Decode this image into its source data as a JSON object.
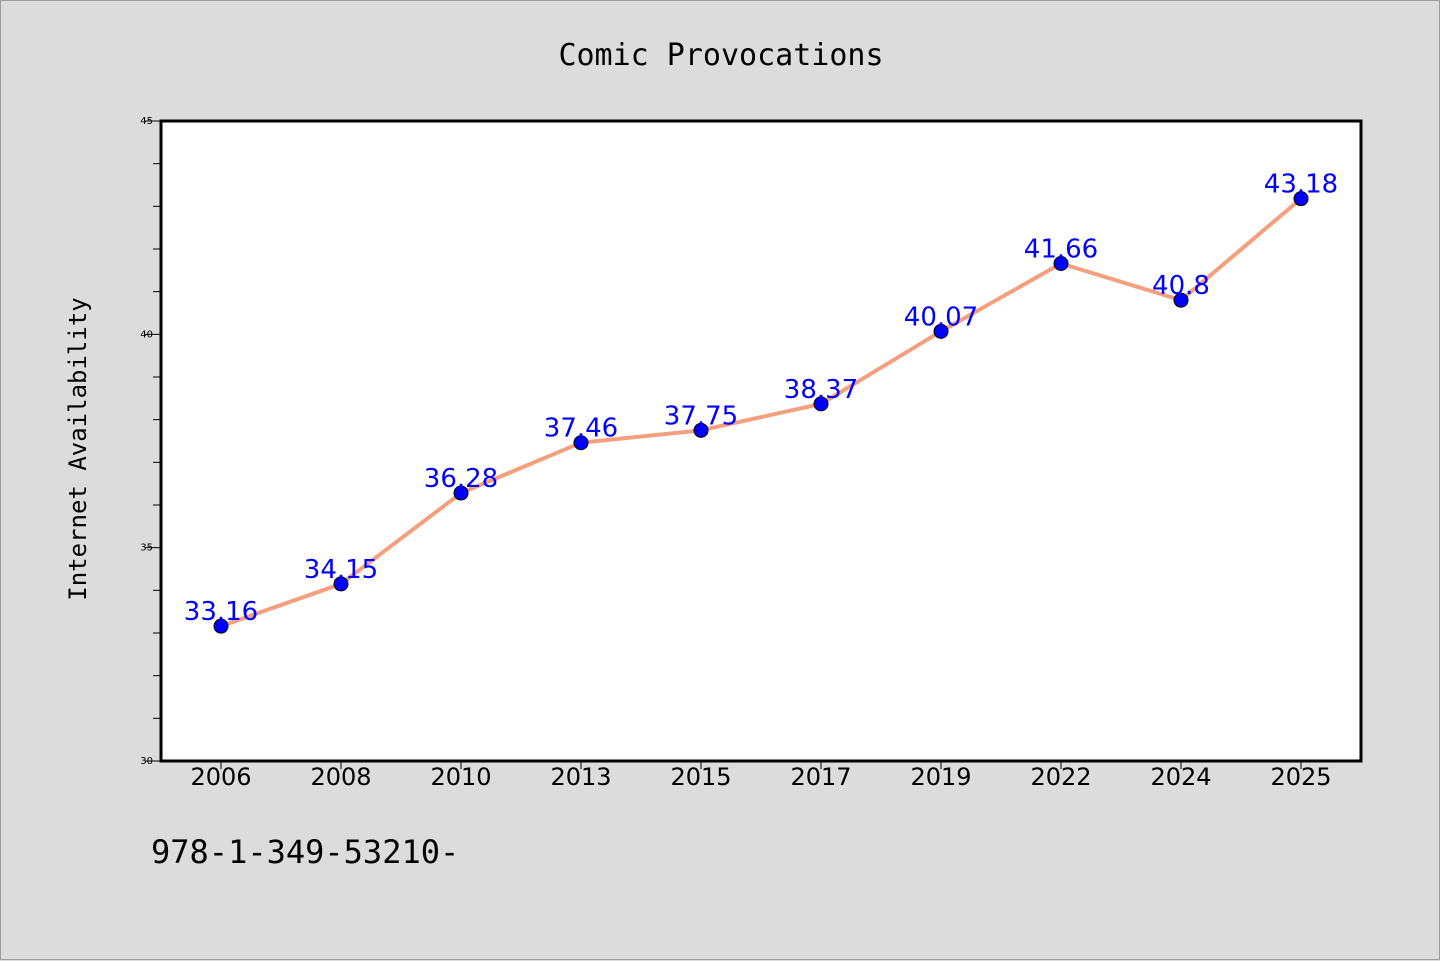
{
  "chart_data": {
    "type": "line",
    "title": "Comic Provocations",
    "xlabel": "",
    "ylabel": "Internet Availability",
    "categories": [
      "2006",
      "2008",
      "2010",
      "2013",
      "2015",
      "2017",
      "2019",
      "2022",
      "2024",
      "2025"
    ],
    "series": [
      {
        "values": [
          33.16,
          34.15,
          36.28,
          37.46,
          37.75,
          38.37,
          40.07,
          41.66,
          40.8,
          43.18
        ],
        "labels": [
          "33.16",
          "34.15",
          "36.28",
          "37.46",
          "37.75",
          "38.37",
          "40.07",
          "41.66",
          "40.8",
          "43.18"
        ],
        "line_color": "#f4a07e",
        "marker_color": "#0000ff"
      }
    ],
    "ylim": [
      30,
      45
    ],
    "yticks": [
      "30",
      "35",
      "40",
      "45"
    ],
    "ytick_values": [
      30,
      35,
      40,
      45
    ],
    "yminor_step": 1,
    "grid": false,
    "legend": "none"
  },
  "footnote": "978-1-349-53210-",
  "colors": {
    "background": "#dcdcdc",
    "plot_background": "#ffffff",
    "line": "#f4a07e",
    "marker": "#0000ff",
    "data_label": "#0000ff"
  }
}
